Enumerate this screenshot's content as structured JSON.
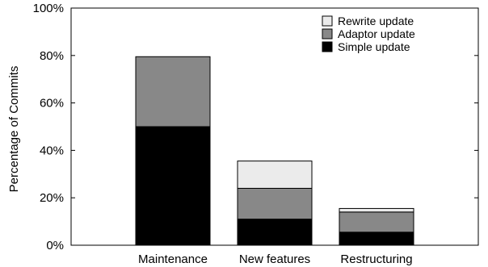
{
  "chart_data": {
    "type": "bar",
    "stacked": true,
    "categories": [
      "Maintenance",
      "New features",
      "Restructuring"
    ],
    "series": [
      {
        "name": "Simple update",
        "values": [
          50,
          11,
          5.5
        ],
        "color": "#000000"
      },
      {
        "name": "Adaptor update",
        "values": [
          29.5,
          13,
          8.5
        ],
        "color": "#888888"
      },
      {
        "name": "Rewrite update",
        "values": [
          0,
          11.5,
          1.5
        ],
        "color": "#ebebeb"
      }
    ],
    "title": "",
    "xlabel": "",
    "ylabel": "Percentage of Commits",
    "ylim": [
      0,
      100
    ],
    "yticks": [
      "0%",
      "20%",
      "40%",
      "60%",
      "80%",
      "100%"
    ],
    "ytick_values": [
      0,
      20,
      40,
      60,
      80,
      100
    ],
    "grid": false,
    "legend_position": "top-right",
    "legend_order": [
      "Rewrite update",
      "Adaptor update",
      "Simple update"
    ]
  }
}
